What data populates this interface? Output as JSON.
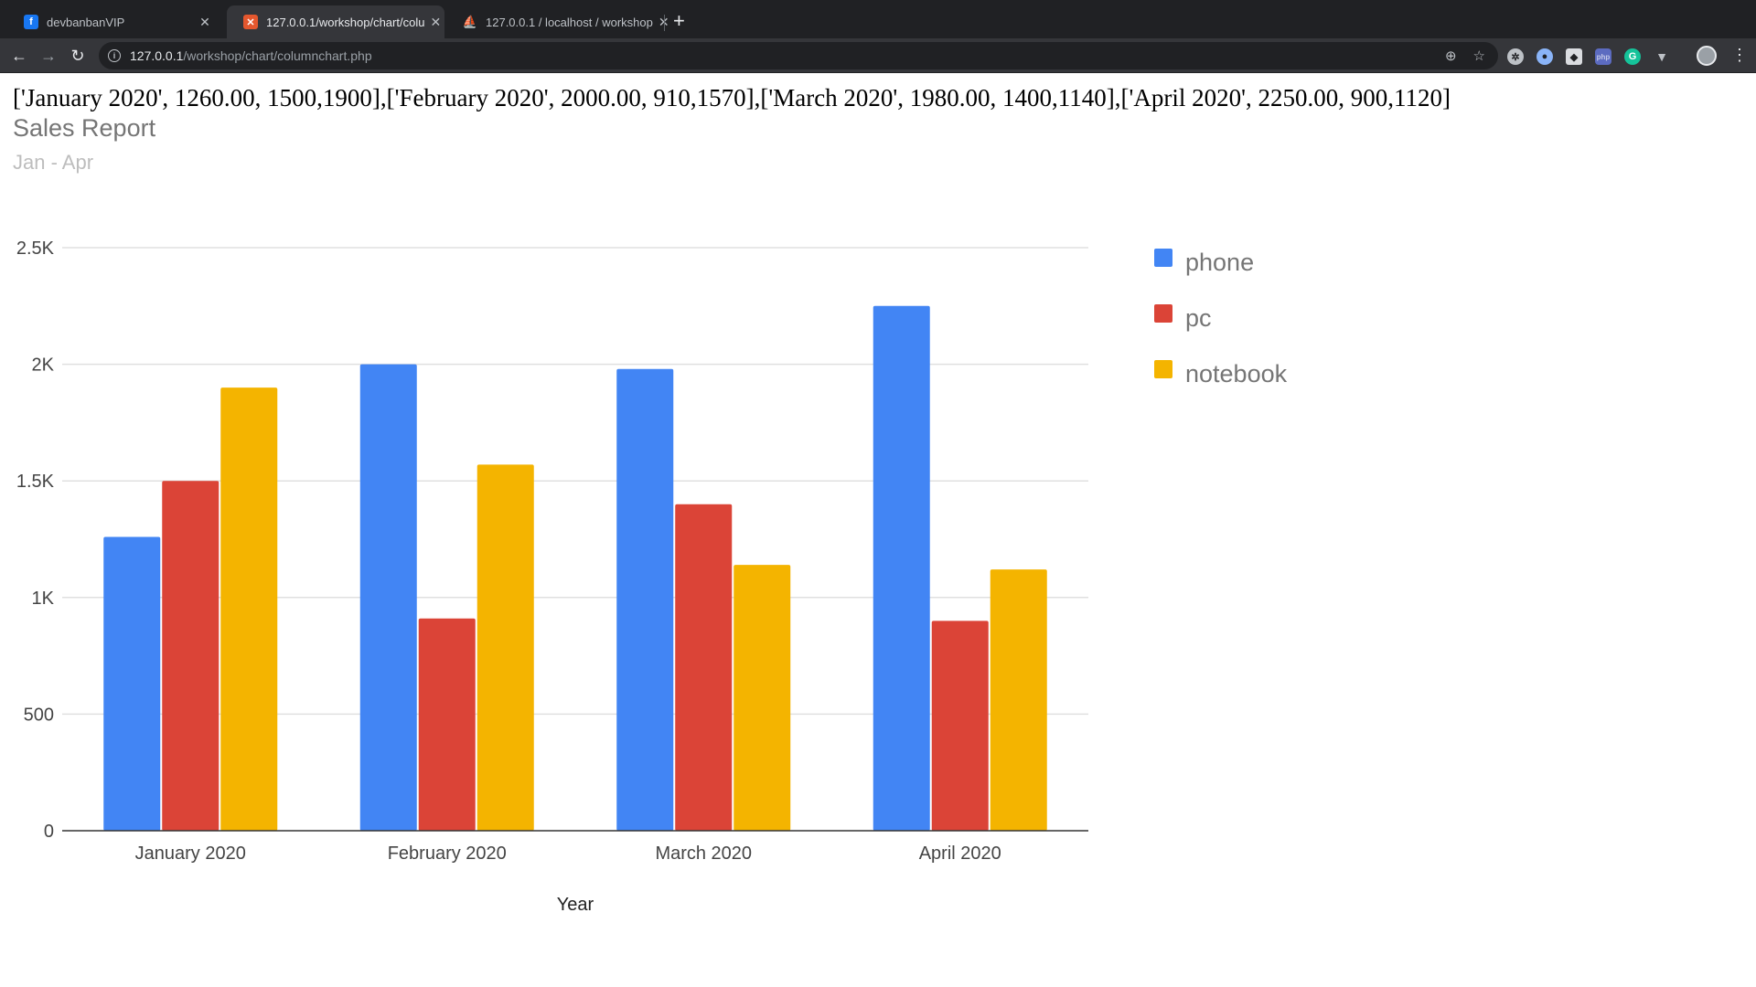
{
  "browser": {
    "tabs": [
      {
        "title": "devbanbanVIP",
        "favicon": "facebook-icon",
        "active": false
      },
      {
        "title": "127.0.0.1/workshop/chart/colu",
        "favicon": "xampp-icon",
        "active": true
      },
      {
        "title": "127.0.0.1 / localhost / workshop",
        "favicon": "phpmyadmin-icon",
        "active": false
      }
    ],
    "url_host": "127.0.0.1",
    "url_path": "/workshop/chart/columnchart.php"
  },
  "page": {
    "raw_data_line": "['January 2020', 1260.00, 1500,1900],['February 2020', 2000.00, 910,1570],['March 2020', 1980.00, 1400,1140],['April 2020', 2250.00, 900,1120]"
  },
  "chart_data": {
    "type": "bar",
    "title": "Sales Report",
    "subtitle": "Jan - Apr",
    "xlabel": "Year",
    "ylabel": "",
    "categories": [
      "January 2020",
      "February 2020",
      "March 2020",
      "April 2020"
    ],
    "series": [
      {
        "name": "phone",
        "color": "#4285f4",
        "values": [
          1260,
          2000,
          1980,
          2250
        ]
      },
      {
        "name": "pc",
        "color": "#db4437",
        "values": [
          1500,
          910,
          1400,
          900
        ]
      },
      {
        "name": "notebook",
        "color": "#f4b400",
        "values": [
          1900,
          1570,
          1140,
          1120
        ]
      }
    ],
    "ylim": [
      0,
      2500
    ],
    "yticks": [
      0,
      500,
      1000,
      1500,
      2000,
      2500
    ],
    "ytick_labels": [
      "0",
      "500",
      "1K",
      "1.5K",
      "2K",
      "2.5K"
    ],
    "grid": true,
    "legend_position": "right"
  }
}
